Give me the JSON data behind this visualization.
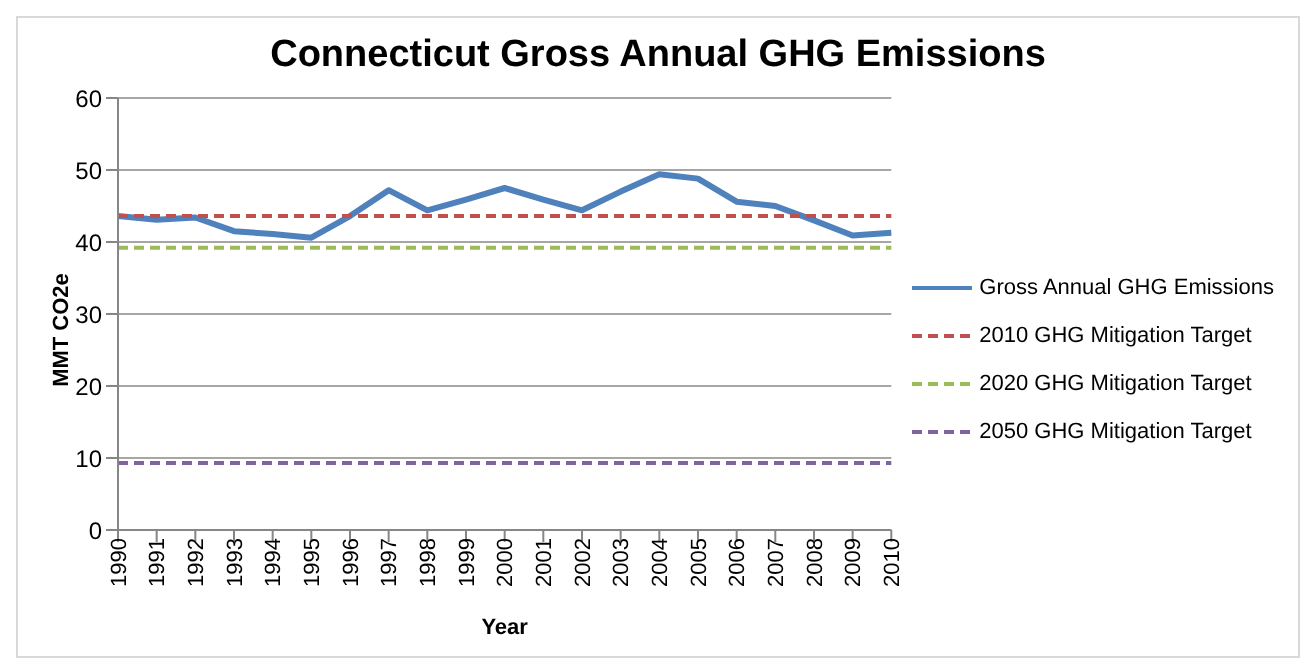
{
  "chart_data": {
    "type": "line",
    "title": "Connecticut Gross Annual GHG Emissions",
    "xlabel": "Year",
    "ylabel": "MMT CO2e",
    "categories": [
      "1990",
      "1991",
      "1992",
      "1993",
      "1994",
      "1995",
      "1996",
      "1997",
      "1998",
      "1999",
      "2000",
      "2001",
      "2002",
      "2003",
      "2004",
      "2005",
      "2006",
      "2007",
      "2008",
      "2009",
      "2010"
    ],
    "series": [
      {
        "name": "Gross Annual GHG Emissions",
        "color": "#4f81bd",
        "line_style": "solid",
        "values": [
          43.6,
          43.1,
          43.4,
          41.5,
          41.1,
          40.6,
          43.6,
          47.2,
          44.4,
          45.9,
          47.5,
          45.9,
          44.4,
          47.0,
          49.4,
          48.8,
          45.6,
          45.0,
          43.0,
          40.9,
          41.3
        ]
      },
      {
        "name": "2010 GHG Mitigation Target",
        "color": "#c0504d",
        "line_style": "dashed",
        "values": [
          43.6,
          43.6,
          43.6,
          43.6,
          43.6,
          43.6,
          43.6,
          43.6,
          43.6,
          43.6,
          43.6,
          43.6,
          43.6,
          43.6,
          43.6,
          43.6,
          43.6,
          43.6,
          43.6,
          43.6,
          43.6
        ]
      },
      {
        "name": "2020 GHG Mitigation Target",
        "color": "#9bbb59",
        "line_style": "dashed",
        "values": [
          39.2,
          39.2,
          39.2,
          39.2,
          39.2,
          39.2,
          39.2,
          39.2,
          39.2,
          39.2,
          39.2,
          39.2,
          39.2,
          39.2,
          39.2,
          39.2,
          39.2,
          39.2,
          39.2,
          39.2,
          39.2
        ]
      },
      {
        "name": "2050 GHG Mitigation Target",
        "color": "#8064a2",
        "line_style": "dashed",
        "values": [
          9.3,
          9.3,
          9.3,
          9.3,
          9.3,
          9.3,
          9.3,
          9.3,
          9.3,
          9.3,
          9.3,
          9.3,
          9.3,
          9.3,
          9.3,
          9.3,
          9.3,
          9.3,
          9.3,
          9.3,
          9.3
        ]
      }
    ],
    "ylim": [
      0,
      60
    ],
    "yticks": [
      0,
      10,
      20,
      30,
      40,
      50,
      60
    ],
    "grid": "y",
    "legend": "right",
    "marker": "none"
  }
}
